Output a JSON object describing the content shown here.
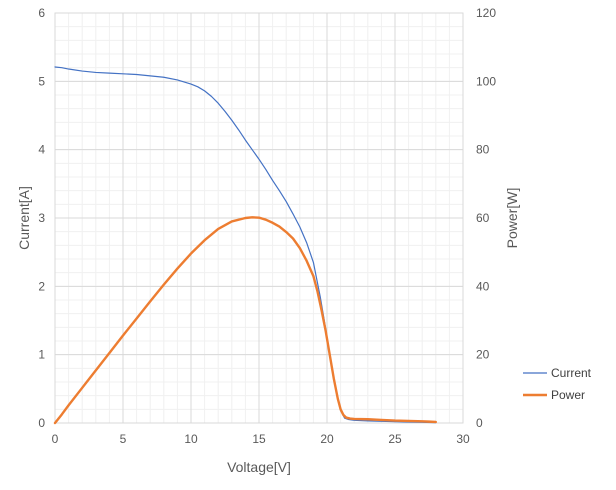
{
  "chart_data": {
    "type": "line",
    "title": "",
    "xlabel": "Voltage[V]",
    "ylabel": "Current[A]",
    "y2label": "Power[W]",
    "xlim": [
      0,
      30
    ],
    "ylim": [
      0,
      6
    ],
    "y2lim": [
      0,
      120
    ],
    "x_ticks": [
      0,
      5,
      10,
      15,
      20,
      25,
      30
    ],
    "y_ticks": [
      0,
      1,
      2,
      3,
      4,
      5,
      6
    ],
    "y2_ticks": [
      0,
      20,
      40,
      60,
      80,
      100,
      120
    ],
    "grid": true,
    "legend_position": "right",
    "series": [
      {
        "name": "Current",
        "axis": "left",
        "color": "#4472C4",
        "x": [
          0,
          0.5,
          1,
          2,
          3,
          4,
          5,
          6,
          7,
          8,
          9,
          10,
          10.5,
          11,
          11.5,
          12,
          12.5,
          13,
          13.5,
          14,
          14.5,
          15,
          15.5,
          16,
          16.5,
          17,
          17.5,
          18,
          18.5,
          19,
          19.2,
          19.5,
          19.8,
          20,
          20.3,
          20.6,
          21,
          21.3,
          21.6,
          22,
          23,
          24,
          25,
          26,
          27,
          28
        ],
        "y": [
          5.21,
          5.2,
          5.18,
          5.15,
          5.13,
          5.12,
          5.11,
          5.1,
          5.08,
          5.06,
          5.02,
          4.96,
          4.92,
          4.86,
          4.78,
          4.68,
          4.56,
          4.43,
          4.29,
          4.14,
          4.0,
          3.86,
          3.71,
          3.55,
          3.4,
          3.24,
          3.06,
          2.87,
          2.64,
          2.35,
          2.15,
          1.85,
          1.5,
          1.25,
          0.9,
          0.55,
          0.18,
          0.07,
          0.05,
          0.04,
          0.03,
          0.025,
          0.02,
          0.015,
          0.01,
          0.005
        ]
      },
      {
        "name": "Power",
        "axis": "right",
        "color": "#ED7D31",
        "x": [
          0,
          0.5,
          1,
          2,
          3,
          4,
          5,
          6,
          7,
          8,
          9,
          10,
          11,
          12,
          13,
          14,
          14.5,
          15,
          15.5,
          16,
          16.5,
          17,
          17.5,
          18,
          18.5,
          19,
          19.3,
          19.6,
          19.9,
          20.2,
          20.5,
          20.8,
          21,
          21.2,
          21.4,
          21.7,
          22,
          23,
          24,
          25,
          26,
          27,
          27.5,
          28
        ],
        "y": [
          0,
          2.5,
          5.2,
          10.3,
          15.4,
          20.5,
          25.6,
          30.6,
          35.6,
          40.5,
          45.2,
          49.6,
          53.5,
          56.8,
          59.0,
          60.0,
          60.2,
          60.1,
          59.5,
          58.6,
          57.5,
          55.9,
          54.0,
          51.2,
          47.5,
          43.0,
          38.5,
          33.0,
          27.0,
          20.0,
          13.0,
          7.0,
          4.0,
          2.4,
          1.6,
          1.3,
          1.2,
          1.1,
          0.9,
          0.7,
          0.6,
          0.5,
          0.4,
          0.3
        ]
      }
    ]
  }
}
